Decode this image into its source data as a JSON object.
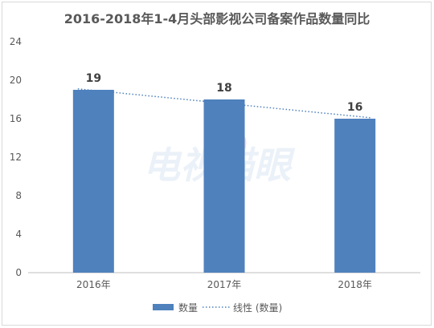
{
  "chart_data": {
    "type": "bar",
    "title": "2016-2018年1-4月头部影视公司备案作品数量同比",
    "categories": [
      "2016年",
      "2017年",
      "2018年"
    ],
    "series": [
      {
        "name": "数量",
        "values": [
          19,
          18,
          16
        ]
      }
    ],
    "trendline": {
      "name": "线性 (数量)",
      "start": 19.1,
      "end": 16.1
    },
    "data_labels": [
      "19",
      "18",
      "16"
    ],
    "y_ticks": [
      "0",
      "4",
      "8",
      "12",
      "16",
      "20",
      "24"
    ],
    "ylim": [
      0,
      24
    ],
    "xlabel": "",
    "ylabel": "",
    "legend_position": "bottom",
    "grid": false,
    "colors": {
      "bar": "#4f81bd",
      "trendline": "#4f81bd",
      "axis": "#bfbfbf",
      "text": "#595959"
    }
  },
  "watermark": "电视猫眼"
}
